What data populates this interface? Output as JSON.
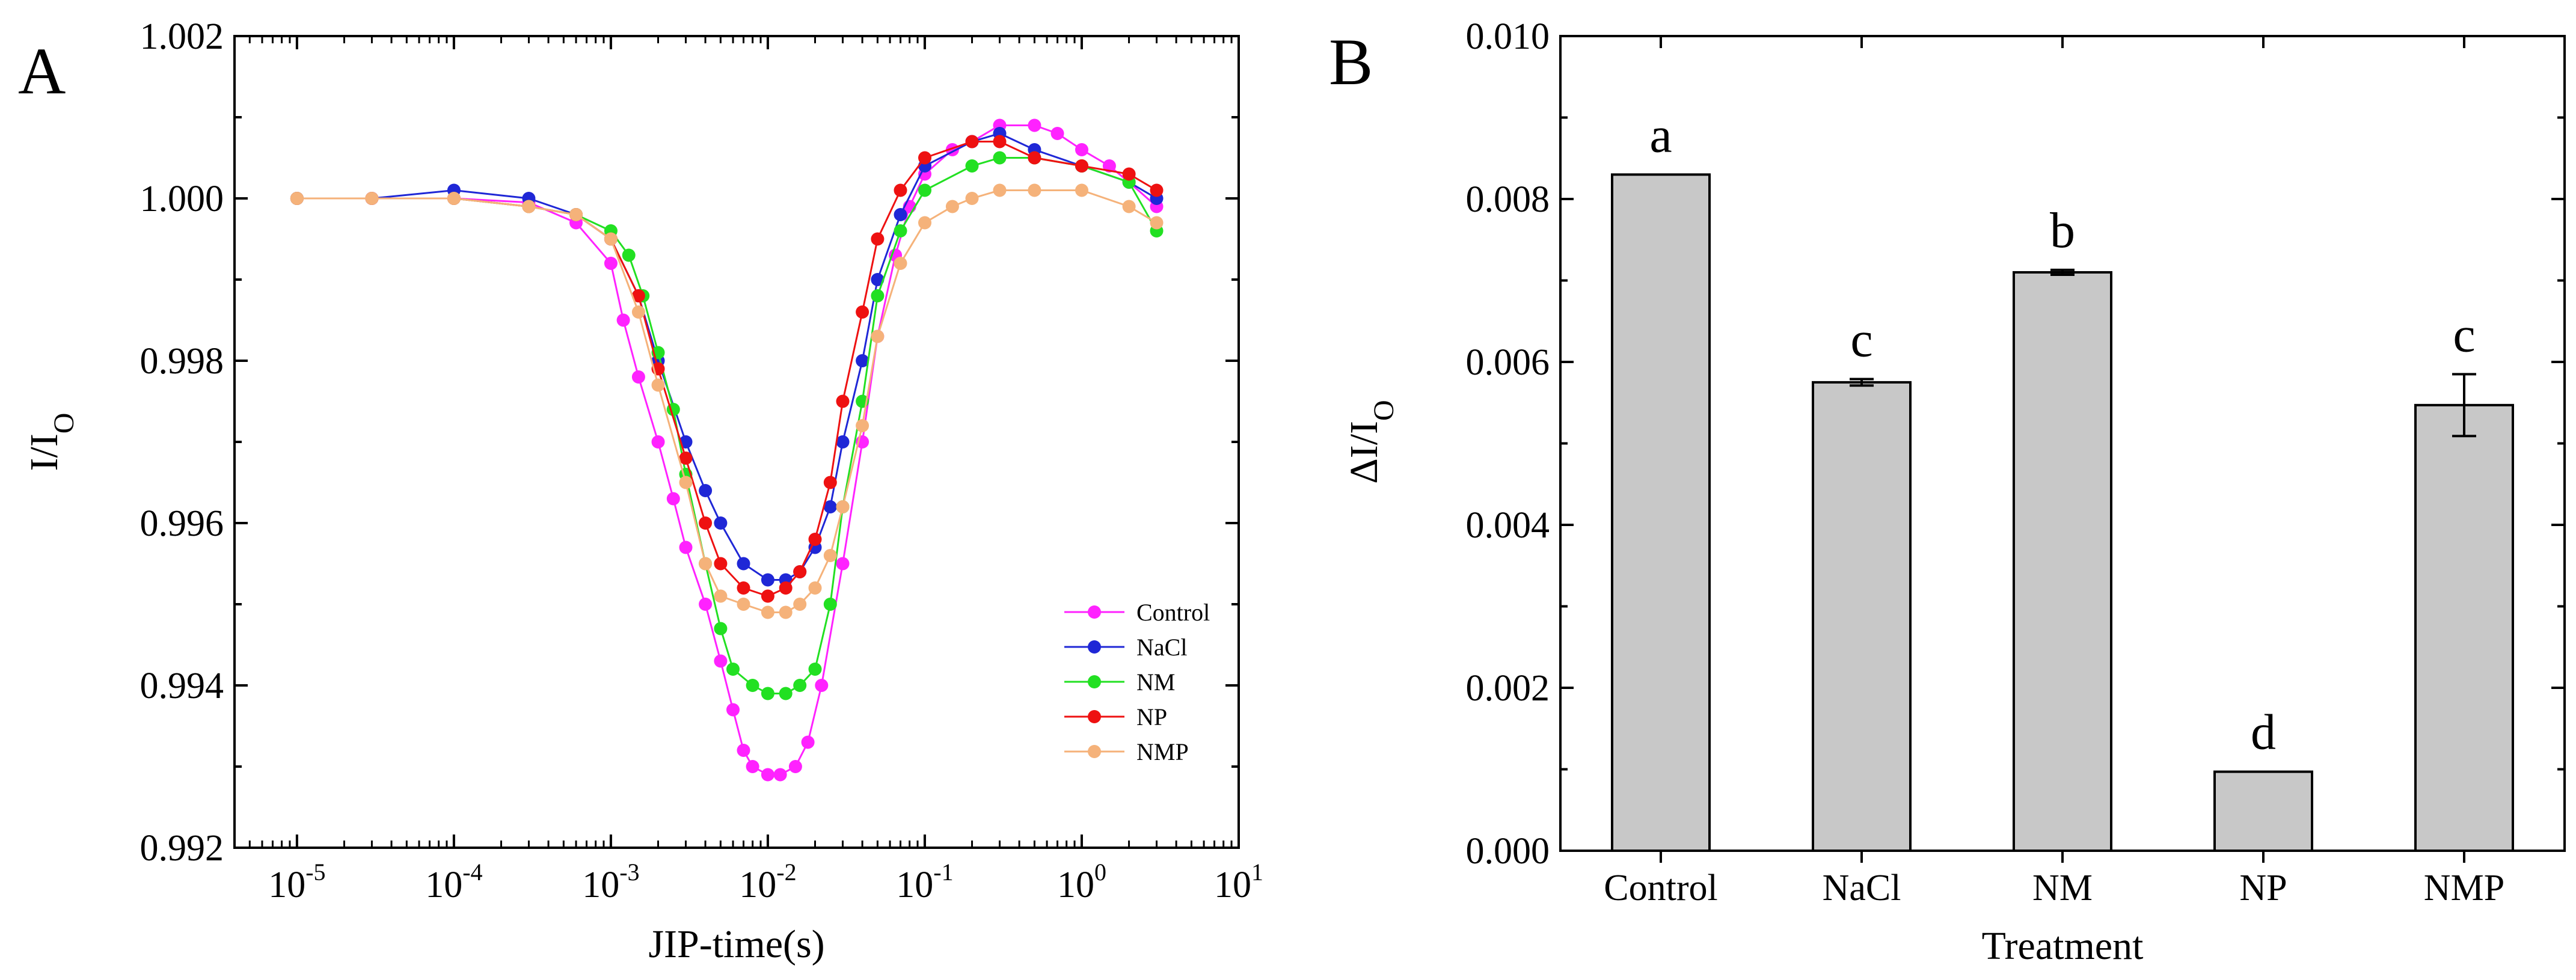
{
  "chart_data": [
    {
      "panel_label": "A",
      "type": "line",
      "xscale": "log",
      "xlim": [
        4e-06,
        10
      ],
      "ylim": [
        0.992,
        1.002
      ],
      "xlabel": "JIP-time(s)",
      "ylabel": {
        "main": "I/I",
        "sub": "O"
      },
      "x_ticks": [
        {
          "value": 1e-05,
          "base": "10",
          "exp": "-5"
        },
        {
          "value": 0.0001,
          "base": "10",
          "exp": "-4"
        },
        {
          "value": 0.001,
          "base": "10",
          "exp": "-3"
        },
        {
          "value": 0.01,
          "base": "10",
          "exp": "-2"
        },
        {
          "value": 0.1,
          "base": "10",
          "exp": "-1"
        },
        {
          "value": 1,
          "base": "10",
          "exp": "0"
        },
        {
          "value": 10,
          "base": "10",
          "exp": "1"
        }
      ],
      "y_ticks": [
        {
          "value": 0.992,
          "label": "0.992"
        },
        {
          "value": 0.994,
          "label": "0.994"
        },
        {
          "value": 0.996,
          "label": "0.996"
        },
        {
          "value": 0.998,
          "label": "0.998"
        },
        {
          "value": 1.0,
          "label": "1.000"
        },
        {
          "value": 1.002,
          "label": "1.002"
        }
      ],
      "legend_position": "bottom-right",
      "series": [
        {
          "name": "Control",
          "color": "#ff22ff",
          "points": [
            [
              1e-05,
              1.0
            ],
            [
              3e-05,
              1.0
            ],
            [
              0.0001,
              1.0
            ],
            [
              0.0003,
              0.99995
            ],
            [
              0.0006,
              0.9997
            ],
            [
              0.001,
              0.9992
            ],
            [
              0.0012,
              0.9985
            ],
            [
              0.0015,
              0.9978
            ],
            [
              0.002,
              0.997
            ],
            [
              0.0025,
              0.9963
            ],
            [
              0.003,
              0.9957
            ],
            [
              0.004,
              0.995
            ],
            [
              0.005,
              0.9943
            ],
            [
              0.006,
              0.9937
            ],
            [
              0.007,
              0.9932
            ],
            [
              0.008,
              0.993
            ],
            [
              0.01,
              0.9929
            ],
            [
              0.012,
              0.9929
            ],
            [
              0.015,
              0.993
            ],
            [
              0.018,
              0.9933
            ],
            [
              0.022,
              0.994
            ],
            [
              0.03,
              0.9955
            ],
            [
              0.04,
              0.997
            ],
            [
              0.05,
              0.9983
            ],
            [
              0.065,
              0.9993
            ],
            [
              0.08,
              0.9999
            ],
            [
              0.1,
              1.0003
            ],
            [
              0.15,
              1.0006
            ],
            [
              0.2,
              1.0007
            ],
            [
              0.3,
              1.0009
            ],
            [
              0.5,
              1.0009
            ],
            [
              0.7,
              1.0008
            ],
            [
              1.0,
              1.0006
            ],
            [
              1.5,
              1.0004
            ],
            [
              2.0,
              1.0002
            ],
            [
              3.0,
              0.9999
            ]
          ]
        },
        {
          "name": "NaCl",
          "color": "#1f27d6",
          "points": [
            [
              1e-05,
              1.0
            ],
            [
              3e-05,
              1.0
            ],
            [
              0.0001,
              1.0001
            ],
            [
              0.0003,
              1.0
            ],
            [
              0.0006,
              0.9998
            ],
            [
              0.001,
              0.9995
            ],
            [
              0.0015,
              0.9988
            ],
            [
              0.002,
              0.998
            ],
            [
              0.003,
              0.997
            ],
            [
              0.004,
              0.9964
            ],
            [
              0.005,
              0.996
            ],
            [
              0.007,
              0.9955
            ],
            [
              0.01,
              0.9953
            ],
            [
              0.013,
              0.9953
            ],
            [
              0.016,
              0.9954
            ],
            [
              0.02,
              0.9957
            ],
            [
              0.025,
              0.9962
            ],
            [
              0.03,
              0.997
            ],
            [
              0.04,
              0.998
            ],
            [
              0.05,
              0.999
            ],
            [
              0.07,
              0.9998
            ],
            [
              0.1,
              1.0004
            ],
            [
              0.2,
              1.0007
            ],
            [
              0.3,
              1.0008
            ],
            [
              0.5,
              1.0006
            ],
            [
              1.0,
              1.0004
            ],
            [
              2.0,
              1.0002
            ],
            [
              3.0,
              1.0
            ]
          ]
        },
        {
          "name": "NM",
          "color": "#22e022",
          "points": [
            [
              1e-05,
              1.0
            ],
            [
              0.0001,
              1.0
            ],
            [
              0.0003,
              0.9999
            ],
            [
              0.0006,
              0.9998
            ],
            [
              0.001,
              0.9996
            ],
            [
              0.0013,
              0.9993
            ],
            [
              0.0016,
              0.9988
            ],
            [
              0.002,
              0.9981
            ],
            [
              0.0025,
              0.9974
            ],
            [
              0.003,
              0.9966
            ],
            [
              0.004,
              0.9955
            ],
            [
              0.005,
              0.9947
            ],
            [
              0.006,
              0.9942
            ],
            [
              0.008,
              0.994
            ],
            [
              0.01,
              0.9939
            ],
            [
              0.013,
              0.9939
            ],
            [
              0.016,
              0.994
            ],
            [
              0.02,
              0.9942
            ],
            [
              0.025,
              0.995
            ],
            [
              0.03,
              0.9962
            ],
            [
              0.04,
              0.9975
            ],
            [
              0.05,
              0.9988
            ],
            [
              0.07,
              0.9996
            ],
            [
              0.1,
              1.0001
            ],
            [
              0.2,
              1.0004
            ],
            [
              0.3,
              1.0005
            ],
            [
              0.5,
              1.0005
            ],
            [
              1.0,
              1.0004
            ],
            [
              2.0,
              1.0002
            ],
            [
              3.0,
              0.9996
            ]
          ]
        },
        {
          "name": "NP",
          "color": "#ee1111",
          "points": [
            [
              1e-05,
              1.0
            ],
            [
              3e-05,
              1.0
            ],
            [
              0.0001,
              1.0
            ],
            [
              0.0003,
              0.9999
            ],
            [
              0.0006,
              0.9998
            ],
            [
              0.001,
              0.9995
            ],
            [
              0.0015,
              0.9988
            ],
            [
              0.002,
              0.9979
            ],
            [
              0.003,
              0.9968
            ],
            [
              0.004,
              0.996
            ],
            [
              0.005,
              0.9955
            ],
            [
              0.007,
              0.9952
            ],
            [
              0.01,
              0.9951
            ],
            [
              0.013,
              0.9952
            ],
            [
              0.016,
              0.9954
            ],
            [
              0.02,
              0.9958
            ],
            [
              0.025,
              0.9965
            ],
            [
              0.03,
              0.9975
            ],
            [
              0.04,
              0.9986
            ],
            [
              0.05,
              0.9995
            ],
            [
              0.07,
              1.0001
            ],
            [
              0.1,
              1.0005
            ],
            [
              0.2,
              1.0007
            ],
            [
              0.3,
              1.0007
            ],
            [
              0.5,
              1.0005
            ],
            [
              1.0,
              1.0004
            ],
            [
              2.0,
              1.0003
            ],
            [
              3.0,
              1.0001
            ]
          ]
        },
        {
          "name": "NMP",
          "color": "#f5b27a",
          "points": [
            [
              1e-05,
              1.0
            ],
            [
              3e-05,
              1.0
            ],
            [
              0.0001,
              1.0
            ],
            [
              0.0003,
              0.9999
            ],
            [
              0.0006,
              0.9998
            ],
            [
              0.001,
              0.9995
            ],
            [
              0.0015,
              0.9986
            ],
            [
              0.002,
              0.9977
            ],
            [
              0.003,
              0.9965
            ],
            [
              0.004,
              0.9955
            ],
            [
              0.005,
              0.9951
            ],
            [
              0.007,
              0.995
            ],
            [
              0.01,
              0.9949
            ],
            [
              0.013,
              0.9949
            ],
            [
              0.016,
              0.995
            ],
            [
              0.02,
              0.9952
            ],
            [
              0.025,
              0.9956
            ],
            [
              0.03,
              0.9962
            ],
            [
              0.04,
              0.9972
            ],
            [
              0.05,
              0.9983
            ],
            [
              0.07,
              0.9992
            ],
            [
              0.1,
              0.9997
            ],
            [
              0.15,
              0.9999
            ],
            [
              0.2,
              1.0
            ],
            [
              0.3,
              1.0001
            ],
            [
              0.5,
              1.0001
            ],
            [
              1.0,
              1.0001
            ],
            [
              2.0,
              0.9999
            ],
            [
              3.0,
              0.9997
            ]
          ]
        }
      ]
    },
    {
      "panel_label": "B",
      "type": "bar",
      "categories": [
        "Control",
        "NaCl",
        "NM",
        "NP",
        "NMP"
      ],
      "values": [
        0.0083,
        0.00575,
        0.0071,
        0.00097,
        0.00547
      ],
      "errors": [
        0.0,
        4e-05,
        3e-05,
        0.0,
        0.00038
      ],
      "significance": [
        "a",
        "c",
        "b",
        "d",
        "c"
      ],
      "bar_color": "#c8c8c8",
      "xlabel": "Treatment",
      "ylabel": {
        "main": "ΔI/I",
        "sub": "O"
      },
      "ylim": [
        0,
        0.01
      ],
      "y_ticks": [
        {
          "value": 0.0,
          "label": "0.000"
        },
        {
          "value": 0.002,
          "label": "0.002"
        },
        {
          "value": 0.004,
          "label": "0.004"
        },
        {
          "value": 0.006,
          "label": "0.006"
        },
        {
          "value": 0.008,
          "label": "0.008"
        },
        {
          "value": 0.01,
          "label": "0.010"
        }
      ]
    }
  ]
}
